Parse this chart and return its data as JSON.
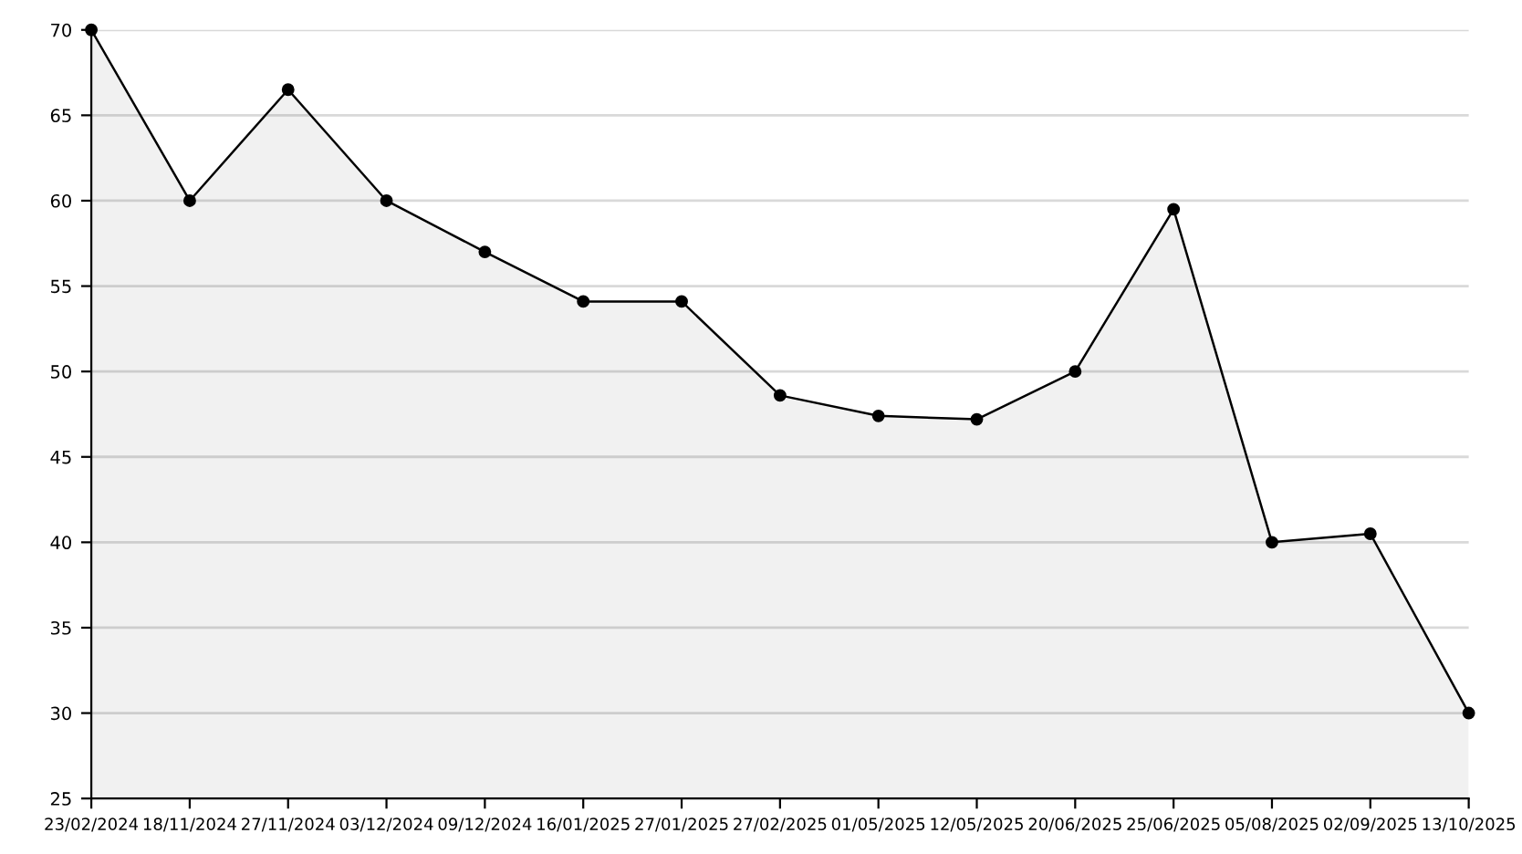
{
  "chart_data": {
    "type": "area",
    "categories": [
      "23/02/2024",
      "18/11/2024",
      "27/11/2024",
      "03/12/2024",
      "09/12/2024",
      "16/01/2025",
      "27/01/2025",
      "27/02/2025",
      "01/05/2025",
      "12/05/2025",
      "20/06/2025",
      "25/06/2025",
      "05/08/2025",
      "02/09/2025",
      "13/10/2025"
    ],
    "series": [
      {
        "color": "#000000",
        "values": [
          70,
          60,
          66.5,
          60,
          57,
          54.1,
          54.1,
          48.6,
          47.4,
          47.2,
          50,
          59.5,
          40,
          40.5,
          30
        ]
      }
    ],
    "ylim": [
      25,
      70
    ],
    "yticks": [
      25,
      30,
      35,
      40,
      45,
      50,
      55,
      60,
      65,
      70
    ],
    "grid": "y",
    "marker": "circle",
    "line_style": "solid"
  }
}
